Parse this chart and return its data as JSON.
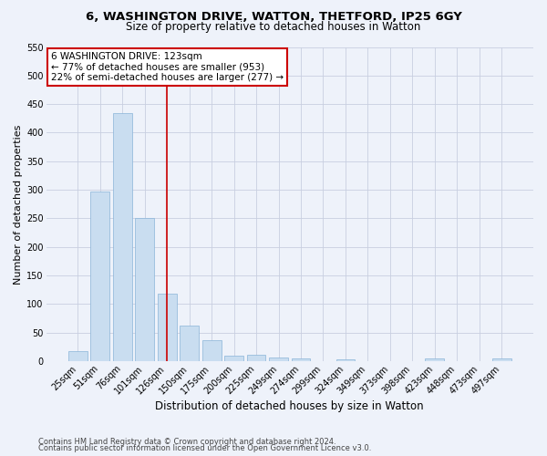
{
  "title1": "6, WASHINGTON DRIVE, WATTON, THETFORD, IP25 6GY",
  "title2": "Size of property relative to detached houses in Watton",
  "xlabel": "Distribution of detached houses by size in Watton",
  "ylabel": "Number of detached properties",
  "footnote1": "Contains HM Land Registry data © Crown copyright and database right 2024.",
  "footnote2": "Contains public sector information licensed under the Open Government Licence v3.0.",
  "annotation_title": "6 WASHINGTON DRIVE: 123sqm",
  "annotation_line1": "← 77% of detached houses are smaller (953)",
  "annotation_line2": "22% of semi-detached houses are larger (277) →",
  "bar_color": "#c9ddf0",
  "bar_edge_color": "#8ab4d8",
  "ref_line_color": "#cc0000",
  "annotation_box_edgecolor": "#cc0000",
  "categories": [
    "25sqm",
    "51sqm",
    "76sqm",
    "101sqm",
    "126sqm",
    "150sqm",
    "175sqm",
    "200sqm",
    "225sqm",
    "249sqm",
    "274sqm",
    "299sqm",
    "324sqm",
    "349sqm",
    "373sqm",
    "398sqm",
    "423sqm",
    "448sqm",
    "473sqm",
    "497sqm"
  ],
  "values": [
    18,
    297,
    435,
    250,
    118,
    63,
    37,
    10,
    11,
    6,
    5,
    0,
    4,
    0,
    0,
    0,
    5,
    0,
    0,
    5
  ],
  "ylim": [
    0,
    550
  ],
  "yticks": [
    0,
    50,
    100,
    150,
    200,
    250,
    300,
    350,
    400,
    450,
    500,
    550
  ],
  "ref_line_x": 4.0,
  "bg_color": "#eef2fa",
  "grid_color": "#c8cfe0",
  "title1_fontsize": 9.5,
  "title2_fontsize": 8.5,
  "ylabel_fontsize": 8,
  "xlabel_fontsize": 8.5,
  "tick_fontsize": 7,
  "footnote_fontsize": 6
}
